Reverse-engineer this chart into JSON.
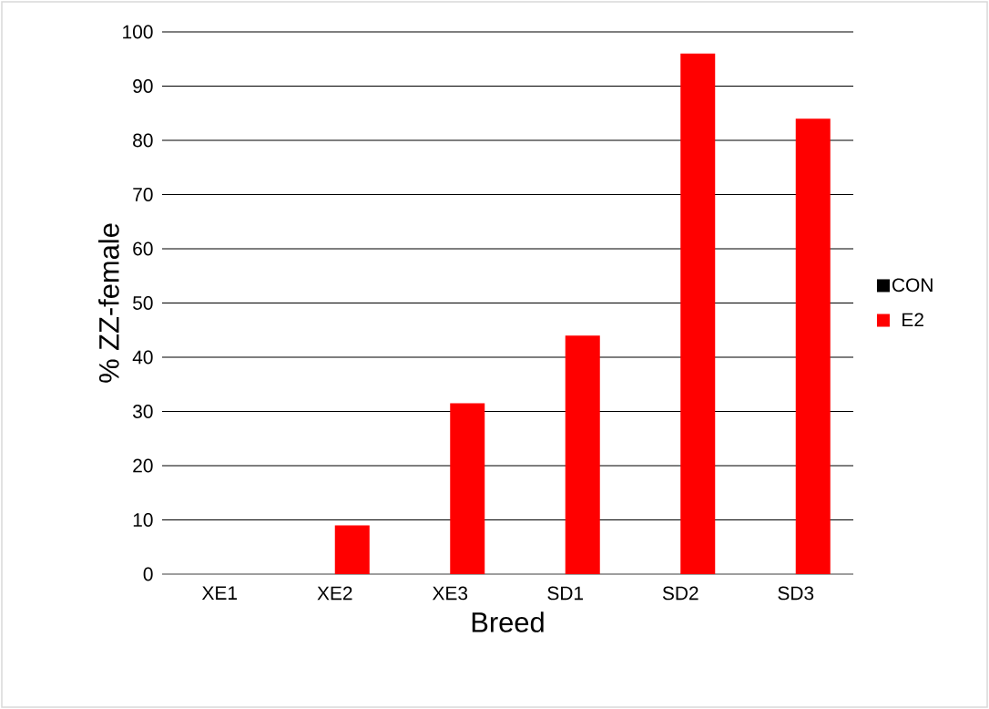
{
  "chart_data": {
    "type": "bar",
    "xlabel": "Breed",
    "ylabel": "% ZZ-female",
    "categories": [
      "XE1",
      "XE2",
      "XE3",
      "SD1",
      "SD2",
      "SD3"
    ],
    "series": [
      {
        "name": "CON",
        "color": "#000000",
        "values": [
          0,
          0,
          0,
          0,
          0,
          0
        ]
      },
      {
        "name": "E2",
        "color": "#ff0000",
        "values": [
          0,
          9,
          31.5,
          44,
          96,
          84
        ]
      }
    ],
    "ylim": [
      0,
      100
    ],
    "yticks": [
      0,
      10,
      20,
      30,
      40,
      50,
      60,
      70,
      80,
      90,
      100
    ],
    "grid": "y",
    "legend": "right"
  }
}
